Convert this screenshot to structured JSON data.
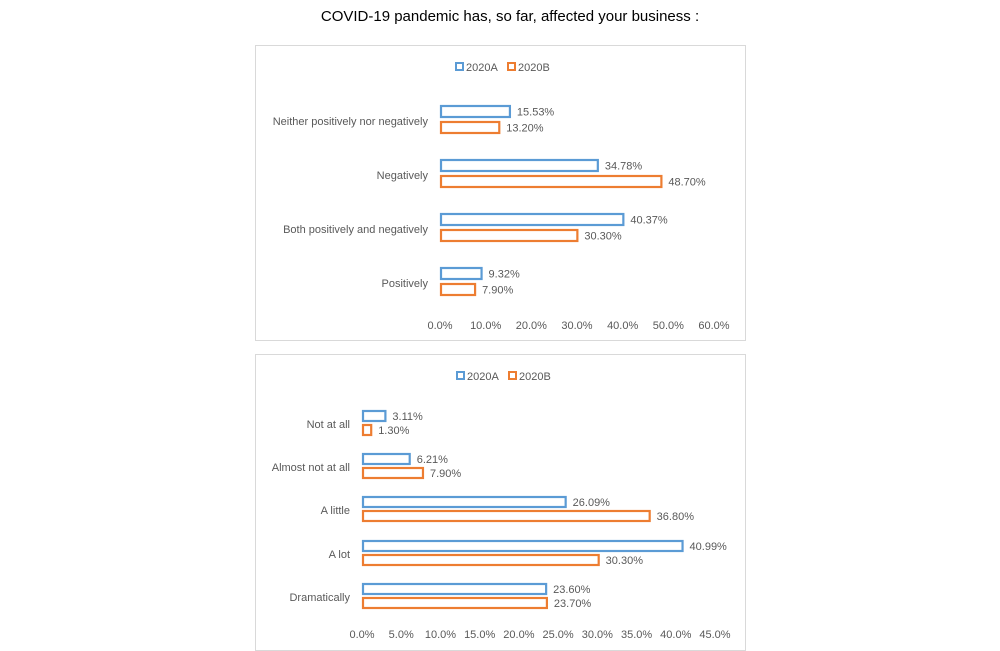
{
  "page": {
    "title": "COVID-19 pandemic has, so far, affected your business :"
  },
  "colors": {
    "series_a": "#5b9bd5",
    "series_b": "#ed7d31",
    "axis_text": "#595959",
    "border": "#d9d9d9"
  },
  "chart_data": [
    {
      "type": "bar",
      "orientation": "horizontal",
      "categories": [
        "Neither positively nor negatively",
        "Negatively",
        "Both positively and negatively",
        "Positively"
      ],
      "series": [
        {
          "name": "2020A",
          "values": [
            15.53,
            34.78,
            40.37,
            9.32
          ],
          "labels": [
            "15.53%",
            "34.78%",
            "40.37%",
            "9.32%"
          ]
        },
        {
          "name": "2020B",
          "values": [
            13.2,
            48.7,
            30.3,
            7.9
          ],
          "labels": [
            "13.20%",
            "48.70%",
            "30.30%",
            "7.90%"
          ]
        }
      ],
      "xlim": [
        0,
        60
      ],
      "xticks": [
        "0.0%",
        "10.0%",
        "20.0%",
        "30.0%",
        "40.0%",
        "50.0%",
        "60.0%"
      ],
      "legend": "top-center",
      "grid": false
    },
    {
      "type": "bar",
      "orientation": "horizontal",
      "categories": [
        "Not at all",
        "Almost not at all",
        "A little",
        "A lot",
        "Dramatically"
      ],
      "series": [
        {
          "name": "2020A",
          "values": [
            3.11,
            6.21,
            26.09,
            40.99,
            23.6
          ],
          "labels": [
            "3.11%",
            "6.21%",
            "26.09%",
            "40.99%",
            "23.60%"
          ]
        },
        {
          "name": "2020B",
          "values": [
            1.3,
            7.9,
            36.8,
            30.3,
            23.7
          ],
          "labels": [
            "1.30%",
            "7.90%",
            "36.80%",
            "30.30%",
            "23.70%"
          ]
        }
      ],
      "xlim": [
        0,
        45
      ],
      "xticks": [
        "0.0%",
        "5.0%",
        "10.0%",
        "15.0%",
        "20.0%",
        "25.0%",
        "30.0%",
        "35.0%",
        "40.0%",
        "45.0%"
      ],
      "legend": "top-center",
      "grid": false
    }
  ]
}
